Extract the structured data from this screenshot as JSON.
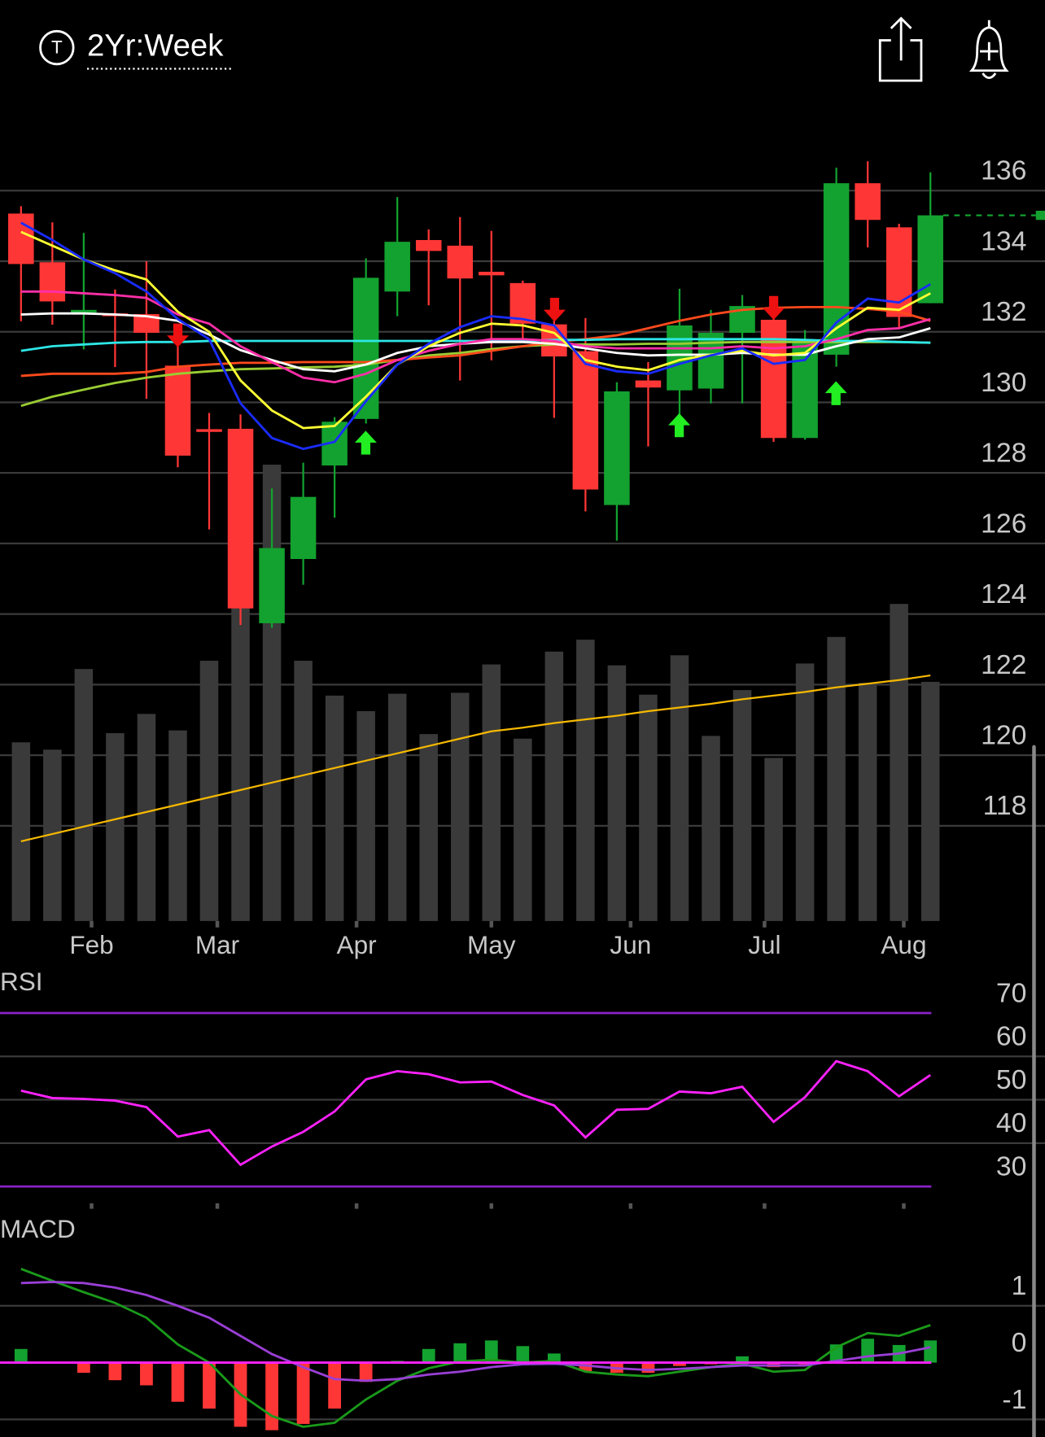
{
  "header": {
    "icon_label": "T",
    "title": "2Yr:Week"
  },
  "chart_data": [
    {
      "type": "candlestick",
      "categories": [
        null,
        null,
        null,
        null,
        null,
        null,
        null,
        null,
        null,
        null,
        null,
        null,
        null,
        null,
        null,
        null,
        null,
        null,
        null,
        null,
        null,
        null,
        null,
        null,
        null,
        null,
        null,
        null,
        null,
        null
      ],
      "xlim": [
        -0.67,
        29.38
      ],
      "xticks": [
        {
          "value": 2.25,
          "label": "Feb"
        },
        {
          "value": 6.26,
          "label": "Mar"
        },
        {
          "value": 10.7,
          "label": "Apr"
        },
        {
          "value": 15.0,
          "label": "May"
        },
        {
          "value": 19.44,
          "label": "Jun"
        },
        {
          "value": 23.71,
          "label": "Jul"
        },
        {
          "value": 28.15,
          "label": "Aug"
        }
      ],
      "ylim": [
        115.3,
        138.0
      ],
      "yticks": [
        136,
        134,
        132,
        130,
        128,
        126,
        124,
        122,
        120,
        118
      ],
      "grid": true,
      "up_color": "#13a22f",
      "down_color": "#ff3636",
      "open": [
        135.35,
        133.97,
        132.58,
        132.52,
        132.5,
        131.04,
        129.24,
        129.25,
        123.74,
        125.56,
        128.21,
        129.53,
        133.14,
        134.6,
        134.44,
        133.7,
        133.38,
        132.21,
        131.45,
        127.09,
        130.62,
        130.34,
        130.39,
        131.97,
        132.34,
        128.99,
        131.35,
        136.21,
        134.96,
        132.81
      ],
      "high": [
        135.56,
        135.1,
        134.8,
        133.2,
        134.0,
        131.8,
        129.7,
        129.66,
        127.56,
        128.29,
        129.58,
        134.08,
        135.82,
        134.9,
        135.25,
        134.86,
        133.45,
        132.52,
        132.39,
        130.57,
        131.14,
        133.22,
        132.62,
        133.04,
        132.57,
        132.05,
        136.65,
        136.83,
        135.06,
        136.52
      ],
      "low": [
        132.3,
        132.2,
        131.5,
        131.0,
        130.1,
        128.16,
        126.4,
        123.69,
        123.61,
        124.83,
        126.73,
        129.4,
        132.44,
        132.75,
        130.62,
        131.19,
        131.8,
        129.56,
        126.91,
        126.08,
        128.75,
        129.51,
        129.97,
        129.97,
        128.88,
        128.94,
        131.01,
        134.39,
        132.1,
        132.81
      ],
      "close": [
        133.92,
        132.86,
        132.62,
        132.48,
        131.97,
        128.49,
        129.2,
        124.16,
        125.87,
        127.32,
        129.45,
        133.53,
        134.55,
        134.29,
        133.51,
        133.6,
        132.23,
        131.3,
        127.53,
        130.31,
        130.42,
        132.18,
        131.97,
        132.73,
        128.99,
        131.74,
        136.21,
        135.17,
        132.42,
        135.3
      ],
      "volume": {
        "color": "#3a3a3a",
        "ylim": [
          0,
          500
        ],
        "values": [
          195,
          187,
          275,
          205,
          226,
          208,
          284,
          365,
          498,
          284,
          246,
          229,
          248,
          204,
          249,
          280,
          199,
          294,
          307,
          279,
          247,
          290,
          202,
          252,
          178,
          281,
          310,
          260,
          346,
          261
        ]
      },
      "volume_average": {
        "color": "#f5b800",
        "values": [
          87,
          95,
          103,
          111,
          119,
          127,
          135,
          143,
          151,
          159,
          167,
          175,
          183,
          191,
          199,
          207,
          211,
          216,
          220,
          224,
          229,
          233,
          237,
          242,
          246,
          250,
          255,
          259,
          263,
          268
        ]
      },
      "last_price_color": "#13a22f",
      "series": [
        {
          "color": "#9acd32",
          "values": [
            129.9,
            130.16,
            130.36,
            130.55,
            130.7,
            130.81,
            130.88,
            130.94,
            130.96,
            130.99,
            131.01,
            131.07,
            131.2,
            131.33,
            131.4,
            131.51,
            131.59,
            131.64,
            131.64,
            131.64,
            131.66,
            131.66,
            131.69,
            131.71,
            131.71,
            131.71,
            131.71,
            131.71,
            131.71,
            131.69
          ]
        },
        {
          "color": "#ff4a1c",
          "values": [
            130.75,
            130.81,
            130.81,
            130.81,
            130.86,
            131.01,
            131.07,
            131.12,
            131.12,
            131.14,
            131.14,
            131.14,
            131.2,
            131.27,
            131.33,
            131.46,
            131.59,
            131.71,
            131.79,
            131.9,
            132.1,
            132.31,
            132.49,
            132.62,
            132.68,
            132.7,
            132.7,
            132.65,
            132.57,
            132.31
          ]
        },
        {
          "color": "#2ee6e6",
          "values": [
            131.46,
            131.59,
            131.64,
            131.69,
            131.71,
            131.71,
            131.74,
            131.74,
            131.74,
            131.74,
            131.74,
            131.74,
            131.74,
            131.74,
            131.74,
            131.74,
            131.74,
            131.77,
            131.77,
            131.79,
            131.79,
            131.79,
            131.79,
            131.79,
            131.79,
            131.77,
            131.74,
            131.74,
            131.71,
            131.69
          ]
        },
        {
          "color": "#ffffff",
          "values": [
            132.49,
            132.52,
            132.52,
            132.49,
            132.44,
            132.31,
            131.92,
            131.48,
            131.2,
            130.94,
            130.88,
            131.07,
            131.4,
            131.59,
            131.66,
            131.71,
            131.71,
            131.66,
            131.53,
            131.4,
            131.33,
            131.35,
            131.35,
            131.4,
            131.35,
            131.35,
            131.59,
            131.79,
            131.84,
            132.1
          ]
        },
        {
          "color": "#ff2fa8",
          "values": [
            133.14,
            133.14,
            133.09,
            133.04,
            132.96,
            132.49,
            132.23,
            131.59,
            131.14,
            130.7,
            130.57,
            130.81,
            131.2,
            131.46,
            131.66,
            131.79,
            131.79,
            131.74,
            131.59,
            131.53,
            131.53,
            131.53,
            131.53,
            131.59,
            131.53,
            131.59,
            131.79,
            132.05,
            132.1,
            132.36
          ]
        },
        {
          "color": "#ffff33",
          "values": [
            134.83,
            134.44,
            134.05,
            133.74,
            133.48,
            132.57,
            132.0,
            130.62,
            129.77,
            129.27,
            129.33,
            130.16,
            131.07,
            131.59,
            131.97,
            132.23,
            132.18,
            131.97,
            131.2,
            131.01,
            130.91,
            131.2,
            131.35,
            131.46,
            131.33,
            131.4,
            132.1,
            132.68,
            132.62,
            133.09
          ]
        },
        {
          "color": "#1a2cff",
          "values": [
            135.09,
            134.6,
            134.05,
            133.66,
            133.14,
            132.36,
            131.79,
            129.97,
            128.99,
            128.68,
            128.88,
            130.03,
            131.07,
            131.66,
            132.13,
            132.44,
            132.36,
            132.18,
            131.09,
            130.88,
            130.81,
            131.09,
            131.33,
            131.53,
            131.09,
            131.2,
            132.26,
            132.94,
            132.83,
            133.35
          ]
        }
      ]
    },
    {
      "type": "line",
      "title": "RSI",
      "xlim": [
        -0.67,
        29.38
      ],
      "ylim": [
        26.75,
        79.6
      ],
      "yticks": [
        70,
        60,
        50,
        40,
        30
      ],
      "bands": [
        70,
        30
      ],
      "band_color": "#8a22c8",
      "series": [
        {
          "color": "#ff22ff",
          "values": [
            52.1,
            50.4,
            50.2,
            49.8,
            48.3,
            41.5,
            43.0,
            35.0,
            39.2,
            42.6,
            47.3,
            54.7,
            56.6,
            55.9,
            54.0,
            54.2,
            51.1,
            48.7,
            41.3,
            47.7,
            47.9,
            51.9,
            51.5,
            53.0,
            44.9,
            50.6,
            58.9,
            56.6,
            50.8,
            55.7
          ]
        }
      ]
    },
    {
      "type": "line",
      "title": "MACD",
      "xlim": [
        -0.67,
        29.38
      ],
      "ylim": [
        -1.31,
        2.53
      ],
      "yticks": [
        1,
        0,
        -1
      ],
      "zero_line_color": "#ff22ff",
      "histogram": {
        "up_color": "#13a22f",
        "down_color": "#ff3636",
        "values": [
          0.24,
          0,
          -0.18,
          -0.31,
          -0.4,
          -0.69,
          -0.81,
          -1.13,
          -1.19,
          -1.08,
          -0.81,
          -0.34,
          0.03,
          0.24,
          0.34,
          0.39,
          0.29,
          0.16,
          -0.15,
          -0.18,
          -0.18,
          -0.06,
          -0.03,
          0.11,
          -0.08,
          -0.03,
          0.32,
          0.42,
          0.31,
          0.39
        ]
      },
      "series": [
        {
          "color": "#1a9a1a",
          "values": [
            1.65,
            1.44,
            1.24,
            1.05,
            0.79,
            0.32,
            0,
            -0.56,
            -0.94,
            -1.13,
            -1.06,
            -0.65,
            -0.32,
            -0.1,
            0.02,
            0.05,
            0,
            0.03,
            -0.16,
            -0.21,
            -0.24,
            -0.16,
            -0.08,
            -0.02,
            -0.16,
            -0.13,
            0.27,
            0.52,
            0.47,
            0.66
          ]
        },
        {
          "color": "#9a3fd6",
          "values": [
            1.4,
            1.42,
            1.4,
            1.32,
            1.19,
            1.0,
            0.79,
            0.47,
            0.15,
            -0.08,
            -0.29,
            -0.32,
            -0.29,
            -0.21,
            -0.16,
            -0.08,
            -0.03,
            -0.02,
            -0.05,
            -0.1,
            -0.13,
            -0.11,
            -0.08,
            -0.05,
            -0.05,
            -0.05,
            0.03,
            0.11,
            0.16,
            0.27
          ]
        }
      ]
    }
  ]
}
